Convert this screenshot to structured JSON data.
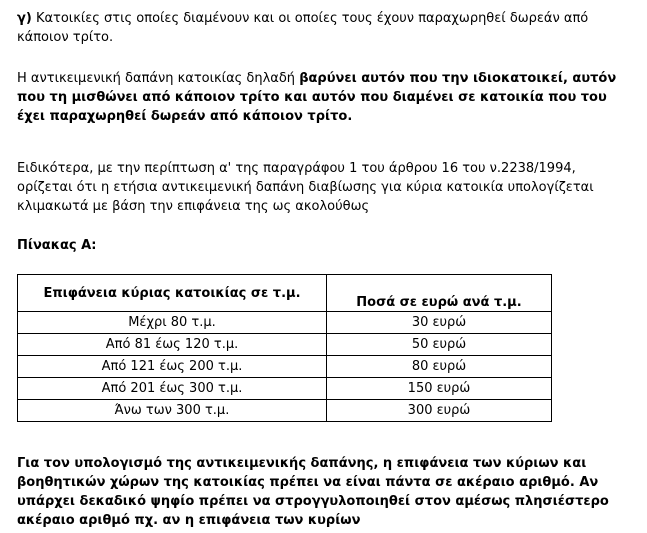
{
  "paragraphs": [
    {
      "label": "γ)",
      "text": "Κατοικίες στις οποίες διαμένουν και οι οποίες τους έχουν παραχωρηθεί δωρεάν από κάποιον τρίτο."
    },
    {
      "text": "Η αντικειμενική δαπάνη κατοικίας δηλαδή ",
      "bold": "βαρύνει αυτόν που την ιδιοκατοικεί, αυτόν που τη μισθώνει από κάποιον τρίτο και αυτόν που διαμένει σε κατοικία που του έχει παραχωρηθεί δωρεάν από κάποιον τρίτο."
    },
    {
      "text": "Ειδικότερα, με την περίπτωση α' της παραγράφου 1 του άρθρου 16 του ν.2238/1994, ορίζεται ότι η ετήσια αντικειμενική δαπάνη διαβίωσης για κύρια κατοικία υπολογίζεται κλιμακωτά με βάση την επιφάνεια της ως ακολούθως"
    }
  ],
  "table_title": "Πίνακας Α:",
  "table": {
    "headers": [
      "Επιφάνεια κύριας κατοικίας σε τ.μ.",
      "Ποσά σε ευρώ ανά τ.μ."
    ],
    "rows": [
      [
        "Μέχρι 80 τ.μ.",
        "30 ευρώ"
      ],
      [
        "Από 81 έως 120 τ.μ.",
        "50 ευρώ"
      ],
      [
        "Από 121 έως 200 τ.μ.",
        "80 ευρώ"
      ],
      [
        "Από 201 έως 300 τ.μ.",
        "150 ευρώ"
      ],
      [
        "Άνω των 300 τ.μ.",
        "300 ευρώ"
      ]
    ]
  },
  "footer_paragraph": "Για τον υπολογισμό της αντικειμενικής δαπάνης, η επιφάνεια των κύριων και βοηθητικών χώρων της κατοικίας πρέπει να είναι πάντα σε ακέραιο αριθμό. Αν υπάρχει δεκαδικό ψηφίο πρέπει να στρογγυλοποιηθεί στον αμέσως πλησιέστερο ακέραιο αριθμό πχ. αν η επιφάνεια των κυρίων"
}
